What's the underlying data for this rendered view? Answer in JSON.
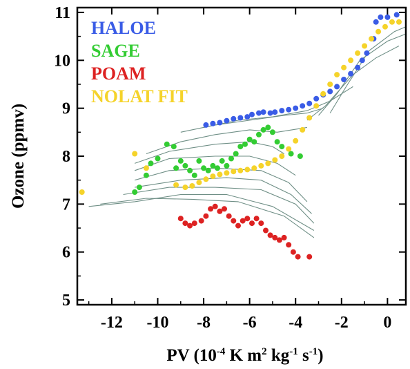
{
  "chart_data": {
    "type": "scatter",
    "ylabel": "Ozone (ppmv)",
    "xlabel_parts": {
      "pre": "PV (10",
      "exp1": "-4",
      "mid1": " K m",
      "exp2": "2",
      "mid2": " kg",
      "exp3": "-1",
      "mid3": " s",
      "exp4": "-1",
      "post": ")"
    },
    "xlim": [
      -13.5,
      0.8
    ],
    "ylim": [
      4.9,
      11.1
    ],
    "x_ticks": [
      -12,
      -10,
      -8,
      -6,
      -4,
      -2,
      0
    ],
    "x_tick_labels": [
      "-12",
      "-10",
      "-8",
      "-6",
      "-4",
      "-2",
      "0"
    ],
    "y_ticks": [
      5,
      6,
      7,
      8,
      9,
      10,
      11
    ],
    "y_tick_labels": [
      "5",
      "6",
      "7",
      "8",
      "9",
      "10",
      "11"
    ],
    "legend_position": "top-left",
    "series": [
      {
        "name": "HALOE",
        "color": "#3a5ce6",
        "points": [
          [
            -7.9,
            8.65
          ],
          [
            -7.6,
            8.68
          ],
          [
            -7.3,
            8.7
          ],
          [
            -7.0,
            8.74
          ],
          [
            -6.7,
            8.78
          ],
          [
            -6.4,
            8.8
          ],
          [
            -6.1,
            8.82
          ],
          [
            -5.9,
            8.87
          ],
          [
            -5.6,
            8.9
          ],
          [
            -5.4,
            8.92
          ],
          [
            -5.1,
            8.9
          ],
          [
            -4.9,
            8.92
          ],
          [
            -4.6,
            8.95
          ],
          [
            -4.3,
            8.97
          ],
          [
            -4.0,
            9.0
          ],
          [
            -3.7,
            9.05
          ],
          [
            -3.4,
            9.1
          ],
          [
            -3.1,
            9.2
          ],
          [
            -2.8,
            9.28
          ],
          [
            -2.5,
            9.35
          ],
          [
            -2.2,
            9.45
          ],
          [
            -1.9,
            9.6
          ],
          [
            -1.6,
            9.72
          ],
          [
            -1.3,
            9.85
          ],
          [
            -1.1,
            10.0
          ],
          [
            -0.9,
            10.15
          ],
          [
            -0.6,
            10.45
          ],
          [
            -0.5,
            10.8
          ],
          [
            -0.3,
            10.9
          ],
          [
            0.0,
            10.9
          ],
          [
            0.4,
            10.95
          ]
        ]
      },
      {
        "name": "SAGE",
        "color": "#33cc33",
        "points": [
          [
            -10.3,
            7.85
          ],
          [
            -10.0,
            7.95
          ],
          [
            -9.6,
            8.25
          ],
          [
            -9.3,
            8.2
          ],
          [
            -9.2,
            7.75
          ],
          [
            -9.0,
            7.9
          ],
          [
            -8.8,
            7.8
          ],
          [
            -8.6,
            7.7
          ],
          [
            -8.4,
            7.6
          ],
          [
            -8.2,
            7.9
          ],
          [
            -8.0,
            7.75
          ],
          [
            -7.8,
            7.7
          ],
          [
            -7.6,
            7.8
          ],
          [
            -7.4,
            7.75
          ],
          [
            -7.2,
            7.9
          ],
          [
            -7.0,
            7.8
          ],
          [
            -6.8,
            7.95
          ],
          [
            -6.6,
            8.05
          ],
          [
            -6.4,
            8.2
          ],
          [
            -6.2,
            8.25
          ],
          [
            -6.0,
            8.35
          ],
          [
            -5.8,
            8.3
          ],
          [
            -5.6,
            8.45
          ],
          [
            -5.4,
            8.55
          ],
          [
            -5.2,
            8.6
          ],
          [
            -5.0,
            8.5
          ],
          [
            -4.8,
            8.3
          ],
          [
            -4.6,
            8.2
          ],
          [
            -4.2,
            8.05
          ],
          [
            -3.8,
            8.0
          ],
          [
            -10.5,
            7.6
          ],
          [
            -10.8,
            7.35
          ],
          [
            -11.0,
            7.25
          ]
        ]
      },
      {
        "name": "POAM",
        "color": "#dd2222",
        "points": [
          [
            -9.0,
            6.7
          ],
          [
            -8.8,
            6.6
          ],
          [
            -8.6,
            6.55
          ],
          [
            -8.4,
            6.6
          ],
          [
            -8.1,
            6.65
          ],
          [
            -7.9,
            6.75
          ],
          [
            -7.7,
            6.9
          ],
          [
            -7.5,
            6.95
          ],
          [
            -7.3,
            6.85
          ],
          [
            -7.1,
            6.9
          ],
          [
            -6.9,
            6.75
          ],
          [
            -6.7,
            6.65
          ],
          [
            -6.5,
            6.55
          ],
          [
            -6.3,
            6.65
          ],
          [
            -6.1,
            6.7
          ],
          [
            -5.9,
            6.6
          ],
          [
            -5.7,
            6.7
          ],
          [
            -5.5,
            6.6
          ],
          [
            -5.3,
            6.45
          ],
          [
            -5.1,
            6.35
          ],
          [
            -4.9,
            6.3
          ],
          [
            -4.7,
            6.25
          ],
          [
            -4.5,
            6.3
          ],
          [
            -4.3,
            6.15
          ],
          [
            -4.1,
            6.0
          ],
          [
            -3.9,
            5.9
          ],
          [
            -3.4,
            5.9
          ]
        ]
      },
      {
        "name": "NOLAT FIT",
        "color": "#f5d32a",
        "points": [
          [
            -13.3,
            7.25
          ],
          [
            -11.0,
            8.05
          ],
          [
            -10.5,
            7.75
          ],
          [
            -9.2,
            7.4
          ],
          [
            -8.8,
            7.35
          ],
          [
            -8.5,
            7.38
          ],
          [
            -8.2,
            7.45
          ],
          [
            -7.9,
            7.52
          ],
          [
            -7.6,
            7.58
          ],
          [
            -7.3,
            7.62
          ],
          [
            -7.0,
            7.65
          ],
          [
            -6.7,
            7.68
          ],
          [
            -6.4,
            7.7
          ],
          [
            -6.1,
            7.72
          ],
          [
            -5.8,
            7.75
          ],
          [
            -5.5,
            7.8
          ],
          [
            -5.2,
            7.85
          ],
          [
            -4.9,
            7.92
          ],
          [
            -4.6,
            8.0
          ],
          [
            -4.3,
            8.15
          ],
          [
            -4.0,
            8.32
          ],
          [
            -3.7,
            8.55
          ],
          [
            -3.4,
            8.8
          ],
          [
            -3.1,
            9.05
          ],
          [
            -2.8,
            9.3
          ],
          [
            -2.5,
            9.5
          ],
          [
            -2.2,
            9.7
          ],
          [
            -1.9,
            9.85
          ],
          [
            -1.6,
            10.0
          ],
          [
            -1.3,
            10.15
          ],
          [
            -1.0,
            10.3
          ],
          [
            -0.7,
            10.45
          ],
          [
            -0.4,
            10.6
          ],
          [
            -0.1,
            10.7
          ],
          [
            0.2,
            10.8
          ],
          [
            0.5,
            10.8
          ]
        ]
      }
    ],
    "contour_lines": [
      [
        [
          -12.5,
          7.0
        ],
        [
          -10.5,
          7.12
        ],
        [
          -8.5,
          7.1
        ],
        [
          -6.5,
          7.05
        ],
        [
          -4.5,
          6.75
        ],
        [
          -3.2,
          6.3
        ]
      ],
      [
        [
          -13.0,
          6.95
        ],
        [
          -11.0,
          7.05
        ],
        [
          -9.0,
          7.2
        ],
        [
          -7.0,
          7.2
        ],
        [
          -5.0,
          6.95
        ],
        [
          -3.2,
          6.45
        ]
      ],
      [
        [
          -11.5,
          7.2
        ],
        [
          -9.5,
          7.35
        ],
        [
          -7.5,
          7.35
        ],
        [
          -5.5,
          7.3
        ],
        [
          -4.0,
          7.0
        ],
        [
          -3.2,
          6.6
        ]
      ],
      [
        [
          -11.0,
          7.35
        ],
        [
          -9.0,
          7.5
        ],
        [
          -7.0,
          7.55
        ],
        [
          -5.5,
          7.5
        ],
        [
          -4.2,
          7.2
        ],
        [
          -3.3,
          6.8
        ]
      ],
      [
        [
          -11.0,
          7.5
        ],
        [
          -9.5,
          7.7
        ],
        [
          -7.5,
          7.75
        ],
        [
          -5.5,
          7.7
        ],
        [
          -4.3,
          7.45
        ],
        [
          -3.5,
          7.05
        ]
      ],
      [
        [
          -11.0,
          7.7
        ],
        [
          -9.5,
          7.95
        ],
        [
          -7.5,
          8.0
        ],
        [
          -6.0,
          8.0
        ],
        [
          -4.8,
          7.85
        ],
        [
          -4.0,
          7.6
        ]
      ],
      [
        [
          -11.0,
          7.85
        ],
        [
          -9.5,
          8.1
        ],
        [
          -7.5,
          8.25
        ],
        [
          -6.0,
          8.3
        ],
        [
          -5.0,
          8.2
        ],
        [
          -4.5,
          8.05
        ]
      ],
      [
        [
          -10.5,
          8.05
        ],
        [
          -9.0,
          8.3
        ],
        [
          -7.5,
          8.45
        ],
        [
          -6.0,
          8.55
        ],
        [
          -4.8,
          8.5
        ],
        [
          -3.5,
          8.6
        ]
      ],
      [
        [
          -9.0,
          8.5
        ],
        [
          -7.5,
          8.65
        ],
        [
          -6.0,
          8.75
        ],
        [
          -4.5,
          8.85
        ],
        [
          -3.5,
          8.9
        ],
        [
          -2.8,
          9.0
        ]
      ],
      [
        [
          -8.0,
          8.6
        ],
        [
          -6.5,
          8.75
        ],
        [
          -5.0,
          8.82
        ],
        [
          -3.5,
          8.95
        ],
        [
          -2.5,
          9.15
        ],
        [
          -1.5,
          9.45
        ]
      ],
      [
        [
          -3.5,
          8.75
        ],
        [
          -2.7,
          9.05
        ],
        [
          -1.5,
          9.7
        ],
        [
          -0.5,
          10.05
        ],
        [
          0.5,
          10.3
        ]
      ],
      [
        [
          -3.0,
          8.85
        ],
        [
          -2.2,
          9.3
        ],
        [
          -1.2,
          10.0
        ],
        [
          0.0,
          10.4
        ],
        [
          0.8,
          10.55
        ]
      ],
      [
        [
          -2.5,
          8.9
        ],
        [
          -1.8,
          9.45
        ],
        [
          -0.8,
          10.2
        ],
        [
          0.3,
          10.6
        ],
        [
          0.8,
          10.7
        ]
      ]
    ]
  },
  "colors": {
    "background": "#ffffff",
    "axis": "#000000",
    "contour": "#6f8f86"
  }
}
